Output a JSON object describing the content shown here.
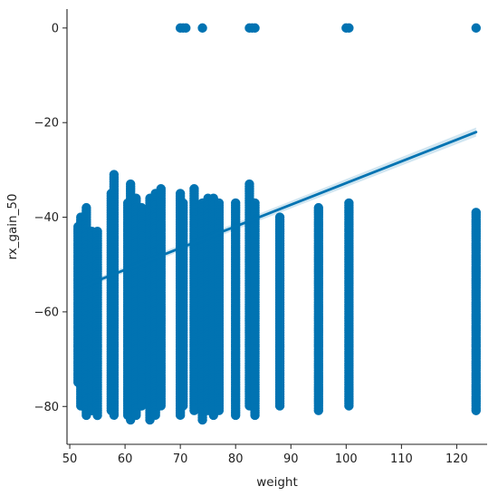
{
  "chart_data": {
    "type": "scatter",
    "title": "",
    "xlabel": "weight",
    "ylabel": "rx_gain_50",
    "xlim": [
      49.5,
      125.5
    ],
    "ylim": [
      -88,
      4
    ],
    "xticks": [
      50,
      60,
      70,
      80,
      90,
      100,
      110,
      120
    ],
    "yticks": [
      0,
      -20,
      -40,
      -60,
      -80
    ],
    "ytick_labels": [
      "0",
      "−20",
      "−40",
      "−60",
      "−80"
    ],
    "grid": false,
    "color": "#0173b2",
    "series": [
      {
        "points_at_zero": [
          70.0,
          70.5,
          71.0,
          74.0,
          82.5,
          83.0,
          83.5,
          100.0,
          100.5,
          123.5
        ],
        "columns": [
          {
            "x": 51.5,
            "ymin": -75,
            "ymax": -42
          },
          {
            "x": 52.0,
            "ymin": -80,
            "ymax": -40
          },
          {
            "x": 53.0,
            "ymin": -82,
            "ymax": -38
          },
          {
            "x": 54.0,
            "ymin": -81,
            "ymax": -43
          },
          {
            "x": 55.0,
            "ymin": -82,
            "ymax": -43
          },
          {
            "x": 57.5,
            "ymin": -81,
            "ymax": -35
          },
          {
            "x": 58.0,
            "ymin": -82,
            "ymax": -31
          },
          {
            "x": 60.5,
            "ymin": -82,
            "ymax": -37
          },
          {
            "x": 61.0,
            "ymin": -83,
            "ymax": -33
          },
          {
            "x": 62.0,
            "ymin": -82,
            "ymax": -36
          },
          {
            "x": 63.0,
            "ymin": -80,
            "ymax": -38
          },
          {
            "x": 64.5,
            "ymin": -83,
            "ymax": -36
          },
          {
            "x": 65.5,
            "ymin": -82,
            "ymax": -35
          },
          {
            "x": 66.5,
            "ymin": -80,
            "ymax": -34
          },
          {
            "x": 70.0,
            "ymin": -82,
            "ymax": -35
          },
          {
            "x": 70.5,
            "ymin": -80,
            "ymax": -37
          },
          {
            "x": 72.5,
            "ymin": -81,
            "ymax": -34
          },
          {
            "x": 74.0,
            "ymin": -83,
            "ymax": -37
          },
          {
            "x": 75.0,
            "ymin": -81,
            "ymax": -36
          },
          {
            "x": 76.0,
            "ymin": -82,
            "ymax": -36
          },
          {
            "x": 77.0,
            "ymin": -81,
            "ymax": -37
          },
          {
            "x": 80.0,
            "ymin": -82,
            "ymax": -37
          },
          {
            "x": 82.5,
            "ymin": -80,
            "ymax": -33
          },
          {
            "x": 83.5,
            "ymin": -82,
            "ymax": -37
          },
          {
            "x": 88.0,
            "ymin": -80,
            "ymax": -40
          },
          {
            "x": 95.0,
            "ymin": -81,
            "ymax": -38
          },
          {
            "x": 100.5,
            "ymin": -80,
            "ymax": -37
          },
          {
            "x": 123.5,
            "ymin": -81,
            "ymax": -39
          }
        ]
      }
    ],
    "regression": {
      "x": [
        51.5,
        123.5
      ],
      "y": [
        -55,
        -22
      ]
    }
  }
}
